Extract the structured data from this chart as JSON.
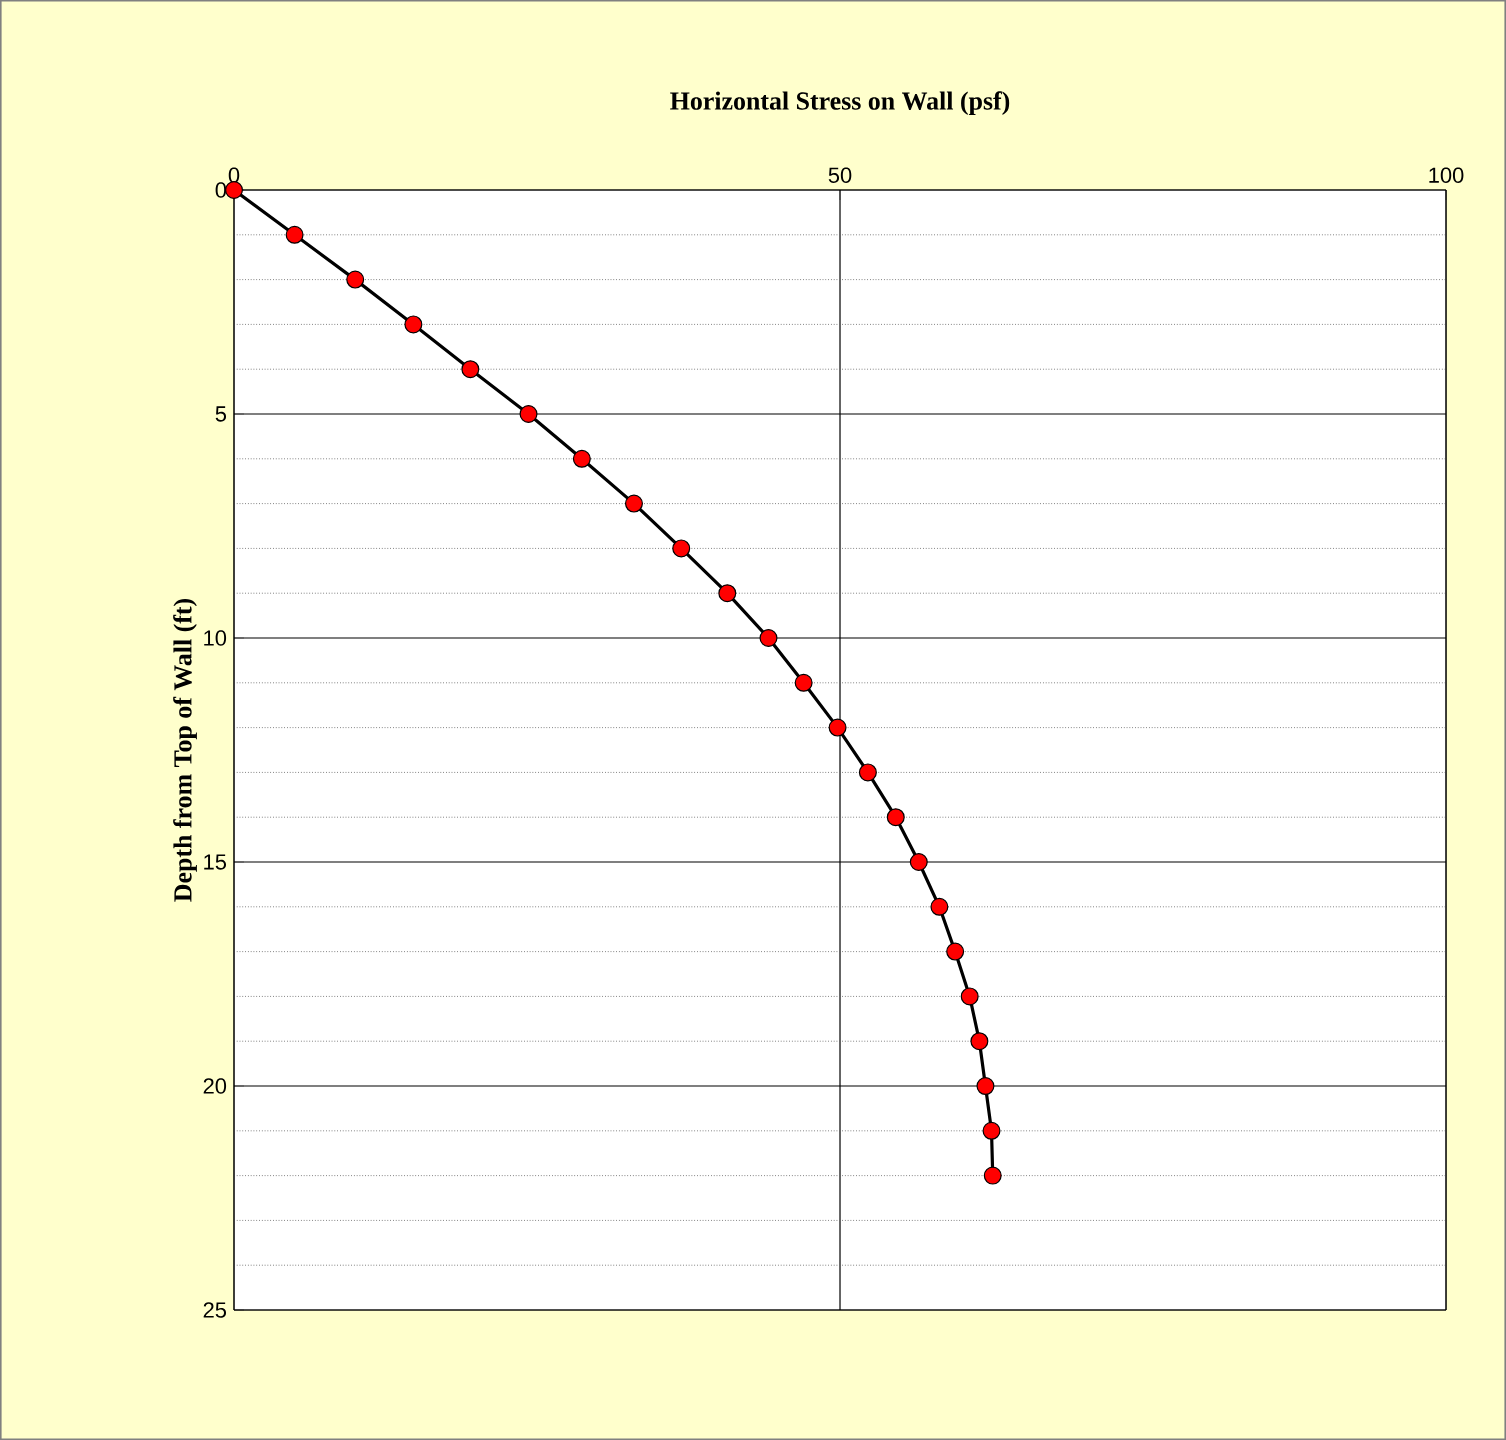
{
  "chart_data": {
    "type": "line",
    "title": "Horizontal Stress on Wall (psf)",
    "ylabel": "Depth from Top of Wall (ft)",
    "series": [
      {
        "color": "#ff0000",
        "x": [
          0,
          5.0,
          10.0,
          14.8,
          19.5,
          24.3,
          28.7,
          33.0,
          36.9,
          40.7,
          44.1,
          47.0,
          49.8,
          52.3,
          54.6,
          56.5,
          58.2,
          59.5,
          60.7,
          61.5,
          62.0,
          62.5,
          62.6
        ],
        "values": [
          0,
          1,
          2,
          3,
          4,
          5,
          6,
          7,
          8,
          9,
          10,
          11,
          12,
          13,
          14,
          15,
          16,
          17,
          18,
          19,
          20,
          21,
          22
        ]
      }
    ],
    "xlim": [
      0,
      100
    ],
    "xticks": [
      0,
      50,
      100
    ],
    "ylim": [
      25,
      0
    ],
    "yticks": [
      0,
      5,
      10,
      15,
      20,
      25
    ],
    "grid": true,
    "marker": "circle",
    "line_style": "solid"
  }
}
